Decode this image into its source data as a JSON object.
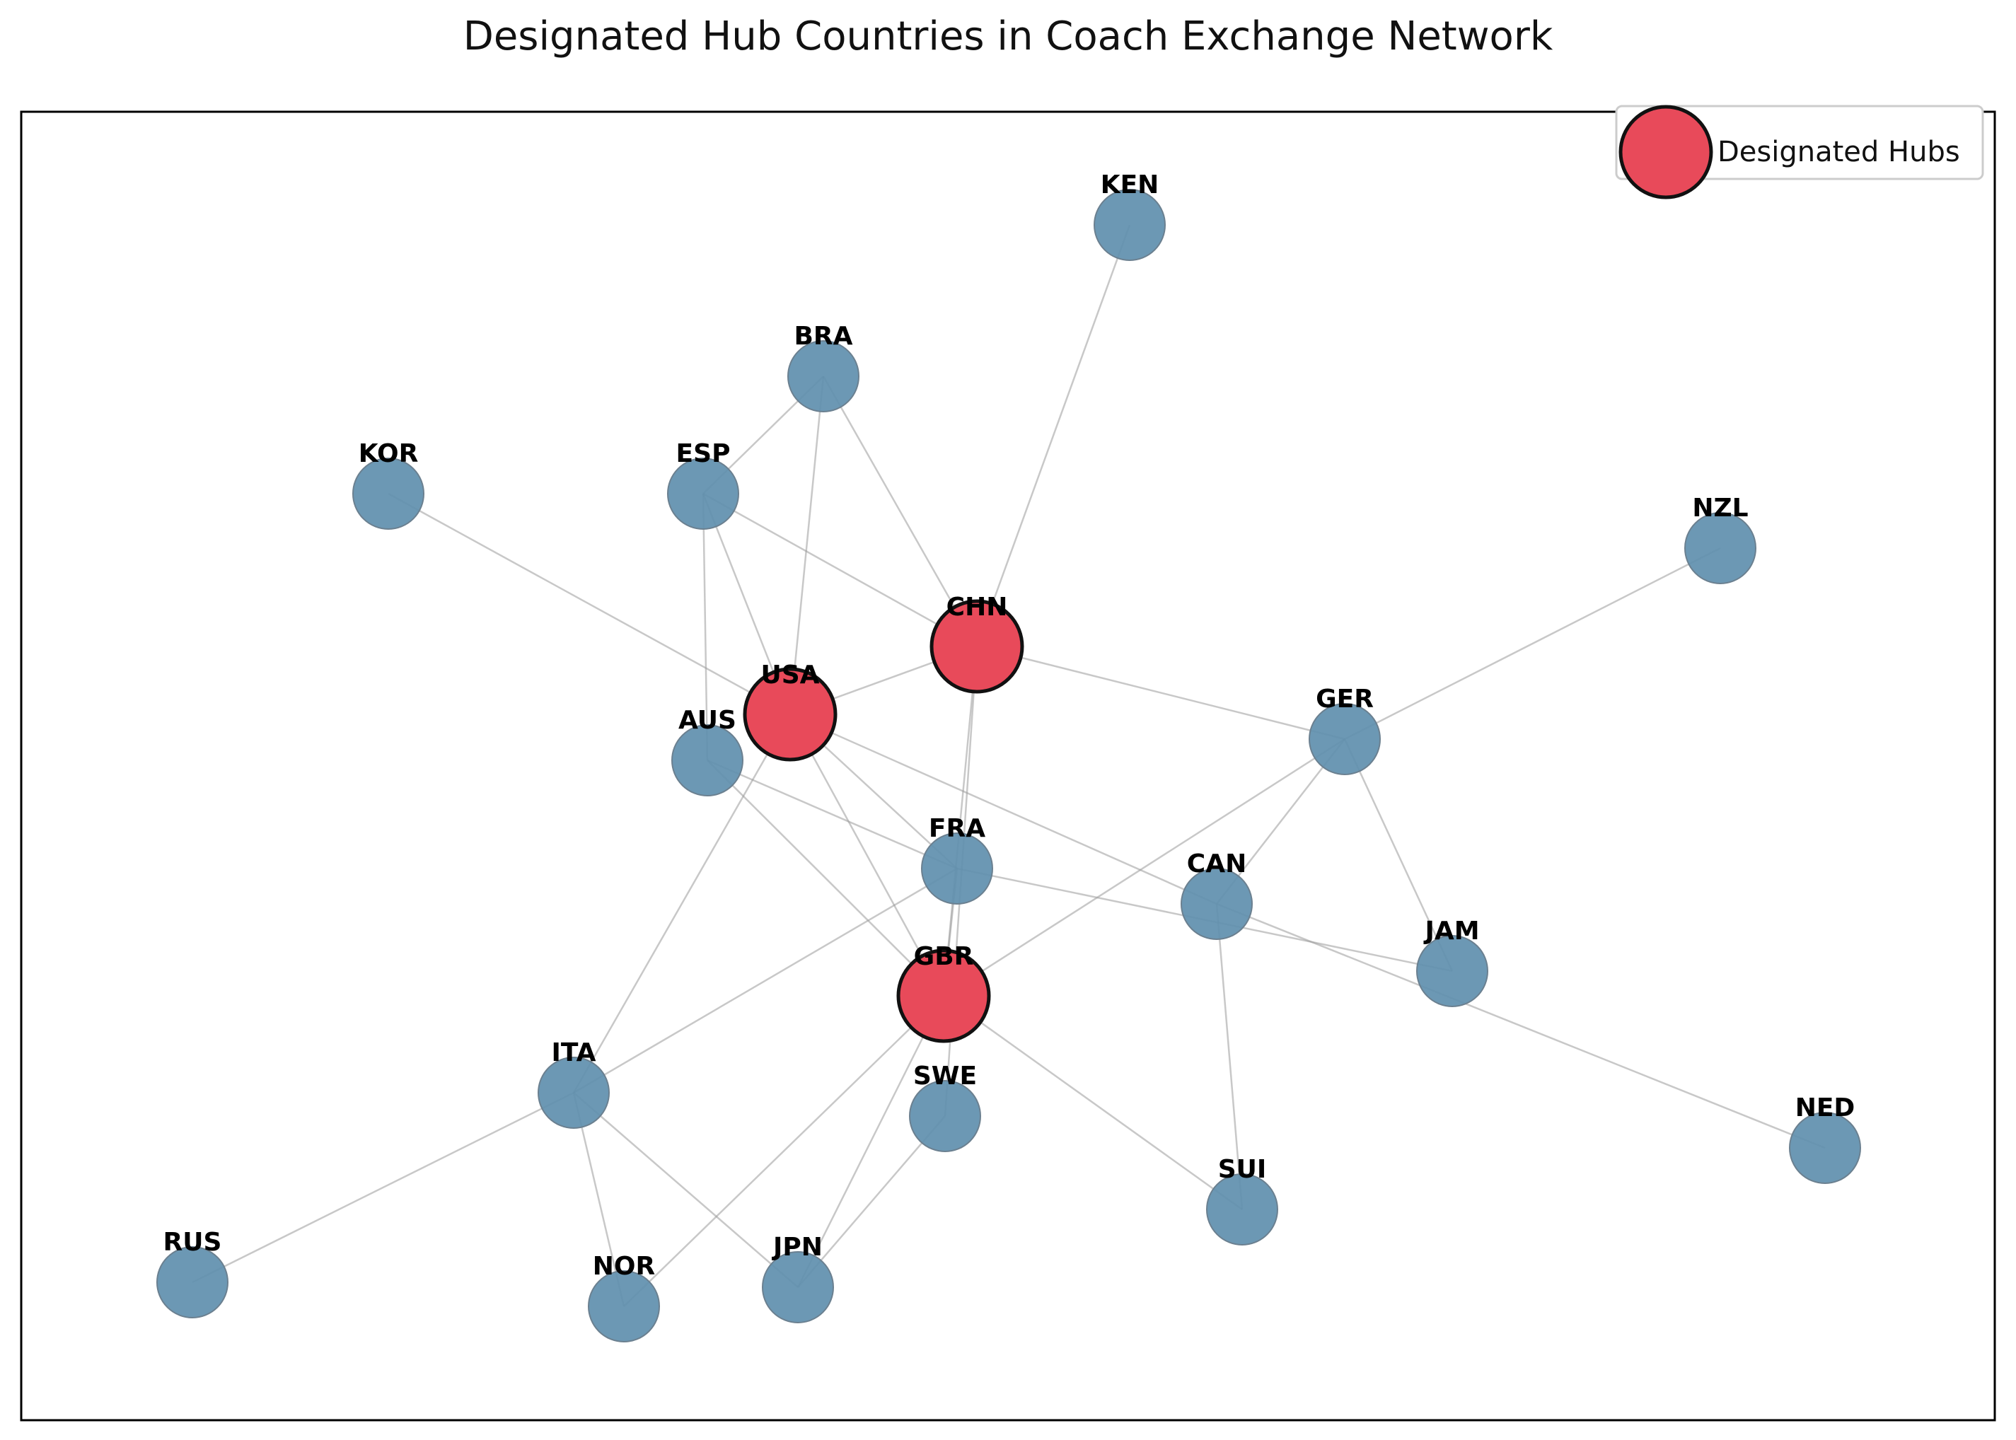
{
  "title": "Designated Hub Countries in Coach Exchange Network",
  "legend": {
    "label": "Designated Hubs",
    "placement": "top-right"
  },
  "colors": {
    "hub_fill": "#e84a5a",
    "hub_stroke": "#111111",
    "node_fill": "#5f8fae",
    "node_stroke": "#6b8090",
    "edge": "#9a9a9a",
    "frame": "#000000"
  },
  "nodes": [
    {
      "id": "KEN",
      "label": "KEN",
      "hub": false
    },
    {
      "id": "BRA",
      "label": "BRA",
      "hub": false
    },
    {
      "id": "KOR",
      "label": "KOR",
      "hub": false
    },
    {
      "id": "ESP",
      "label": "ESP",
      "hub": false
    },
    {
      "id": "NZL",
      "label": "NZL",
      "hub": false
    },
    {
      "id": "CHN",
      "label": "CHN",
      "hub": true
    },
    {
      "id": "USA",
      "label": "USA",
      "hub": true
    },
    {
      "id": "AUS",
      "label": "AUS",
      "hub": false
    },
    {
      "id": "GER",
      "label": "GER",
      "hub": false
    },
    {
      "id": "FRA",
      "label": "FRA",
      "hub": false
    },
    {
      "id": "CAN",
      "label": "CAN",
      "hub": false
    },
    {
      "id": "JAM",
      "label": "JAM",
      "hub": false
    },
    {
      "id": "GBR",
      "label": "GBR",
      "hub": true
    },
    {
      "id": "ITA",
      "label": "ITA",
      "hub": false
    },
    {
      "id": "SWE",
      "label": "SWE",
      "hub": false
    },
    {
      "id": "NED",
      "label": "NED",
      "hub": false
    },
    {
      "id": "SUI",
      "label": "SUI",
      "hub": false
    },
    {
      "id": "RUS",
      "label": "RUS",
      "hub": false
    },
    {
      "id": "NOR",
      "label": "NOR",
      "hub": false
    },
    {
      "id": "JPN",
      "label": "JPN",
      "hub": false
    }
  ],
  "edges": [
    [
      "CHN",
      "KEN"
    ],
    [
      "CHN",
      "BRA"
    ],
    [
      "CHN",
      "ESP"
    ],
    [
      "CHN",
      "USA"
    ],
    [
      "CHN",
      "GER"
    ],
    [
      "CHN",
      "GBR"
    ],
    [
      "CHN",
      "SWE"
    ],
    [
      "USA",
      "BRA"
    ],
    [
      "USA",
      "ESP"
    ],
    [
      "USA",
      "KOR"
    ],
    [
      "USA",
      "GBR"
    ],
    [
      "USA",
      "ITA"
    ],
    [
      "USA",
      "CAN"
    ],
    [
      "USA",
      "FRA"
    ],
    [
      "BRA",
      "ESP"
    ],
    [
      "ESP",
      "AUS"
    ],
    [
      "AUS",
      "FRA"
    ],
    [
      "AUS",
      "GBR"
    ],
    [
      "FRA",
      "JAM"
    ],
    [
      "FRA",
      "ITA"
    ],
    [
      "FRA",
      "GBR"
    ],
    [
      "GER",
      "NZL"
    ],
    [
      "GER",
      "CAN"
    ],
    [
      "GER",
      "JAM"
    ],
    [
      "GER",
      "GBR"
    ],
    [
      "CAN",
      "NED"
    ],
    [
      "CAN",
      "SUI"
    ],
    [
      "GBR",
      "SUI"
    ],
    [
      "GBR",
      "NOR"
    ],
    [
      "GBR",
      "JPN"
    ],
    [
      "SWE",
      "JPN"
    ],
    [
      "ITA",
      "RUS"
    ],
    [
      "ITA",
      "NOR"
    ],
    [
      "ITA",
      "JPN"
    ]
  ]
}
